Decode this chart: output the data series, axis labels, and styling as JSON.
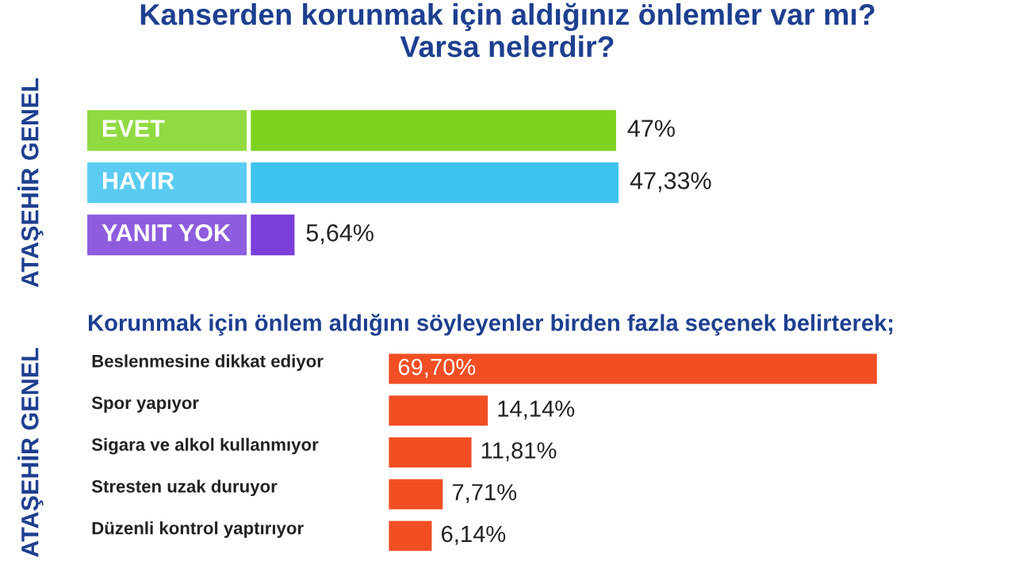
{
  "chart_data": [
    {
      "type": "bar",
      "orientation": "horizontal",
      "title": "Kanserden korunmak için aldığınız önlemler var mı?\nVarsa nelerdir?",
      "ylabel": "ATAŞEHİR GENEL",
      "categories": [
        "EVET",
        "HAYIR",
        "YANIT YOK"
      ],
      "values": [
        47,
        47.33,
        5.64
      ],
      "colors": [
        "#7ed321",
        "#3ec3ee",
        "#7a3fd8"
      ],
      "value_labels": [
        "47%",
        "47,33%",
        "5,64%"
      ],
      "tick_labels": "y"
    },
    {
      "type": "bar",
      "orientation": "horizontal",
      "title": "Korunmak için önlem aldığını söyleyenler birden fazla seçenek belirterek;",
      "ylabel": "ATAŞEHİR GENEL",
      "categories": [
        "Beslenmesine dikkat ediyor",
        "Spor yapıyor",
        "Sigara ve alkol kullanmıyor",
        "Stresten uzak duruyor",
        "Düzenli kontrol yaptırıyor"
      ],
      "values": [
        69.7,
        14.14,
        11.81,
        7.71,
        6.14
      ],
      "colors": [
        "#f24e23",
        "#f24e23",
        "#f24e23",
        "#f24e23",
        "#f24e23"
      ],
      "value_labels": [
        "69,70%",
        "14,14%",
        "11,81%",
        "7,71%",
        "6,14%"
      ],
      "tick_labels": "y"
    }
  ]
}
